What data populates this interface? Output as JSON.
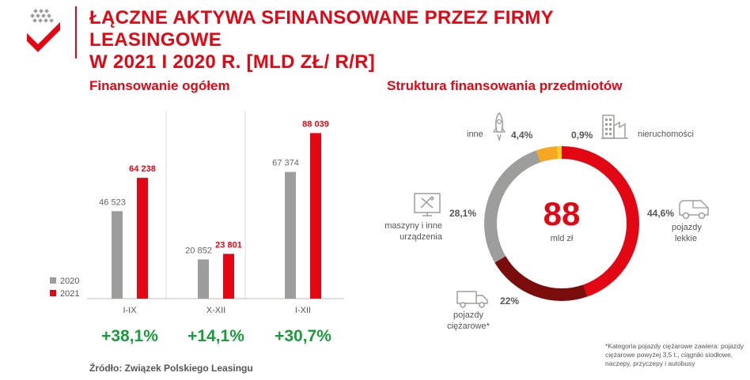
{
  "title_line1": "ŁĄCZNE AKTYWA SFINANSOWANE PRZEZ FIRMY LEASINGOWE",
  "title_line2": "W 2021 I 2020 R. [MLD ZŁ/ R/R]",
  "left_title": "Finansowanie ogółem",
  "right_title": "Struktura finansowania przedmiotów",
  "source": "Źródło: Związek Polskiego Leasingu",
  "note": "*Kategoria pojazdy ciężarowe zawiera: pojazdy ciężarowe powyżej 3,5 t., ciągniki siodłowe, naczepy, przyczepy i autobusy",
  "colors": {
    "red": "#e30613",
    "gray": "#9d9d9c",
    "dark_red": "#7a0c0c",
    "orange": "#f5a623",
    "yellow": "#f2d21b",
    "green": "#1a9b3c"
  },
  "chart_data": [
    {
      "type": "bar",
      "title": "Finansowanie ogółem",
      "categories": [
        "I-IX",
        "X-XII",
        "I-XII"
      ],
      "series": [
        {
          "name": "2020",
          "values": [
            46523,
            20852,
            67374
          ],
          "labels": [
            "46 523",
            "20 852",
            "67 374"
          ],
          "color": "#9d9d9c"
        },
        {
          "name": "2021",
          "values": [
            64238,
            23801,
            88039
          ],
          "labels": [
            "64 238",
            "23 801",
            "88 039"
          ],
          "color": "#e30613"
        }
      ],
      "changes": [
        "+38,1%",
        "+14,1%",
        "+30,7%"
      ],
      "ylim": [
        0,
        100000
      ],
      "legend": "bottom-left"
    },
    {
      "type": "pie",
      "title": "Struktura finansowania przedmiotów",
      "center_value": "88",
      "center_unit": "mld zł",
      "slices": [
        {
          "name": "pojazdy lekkie",
          "label": "44,6%",
          "value": 44.6,
          "color": "#e30613",
          "icon": "car-icon"
        },
        {
          "name": "pojazdy ciężarowe*",
          "label": "22%",
          "value": 22.0,
          "color": "#7a0c0c",
          "icon": "truck-icon"
        },
        {
          "name": "maszyny i inne urządzenia",
          "label": "28,1%",
          "value": 28.1,
          "color": "#9d9d9c",
          "icon": "machinery-icon"
        },
        {
          "name": "inne",
          "label": "4,4%",
          "value": 4.4,
          "color": "#f5a623",
          "icon": "rocket-icon"
        },
        {
          "name": "nieruchomości",
          "label": "0,9%",
          "value": 0.9,
          "color": "#f2d21b",
          "icon": "building-icon"
        }
      ]
    }
  ]
}
